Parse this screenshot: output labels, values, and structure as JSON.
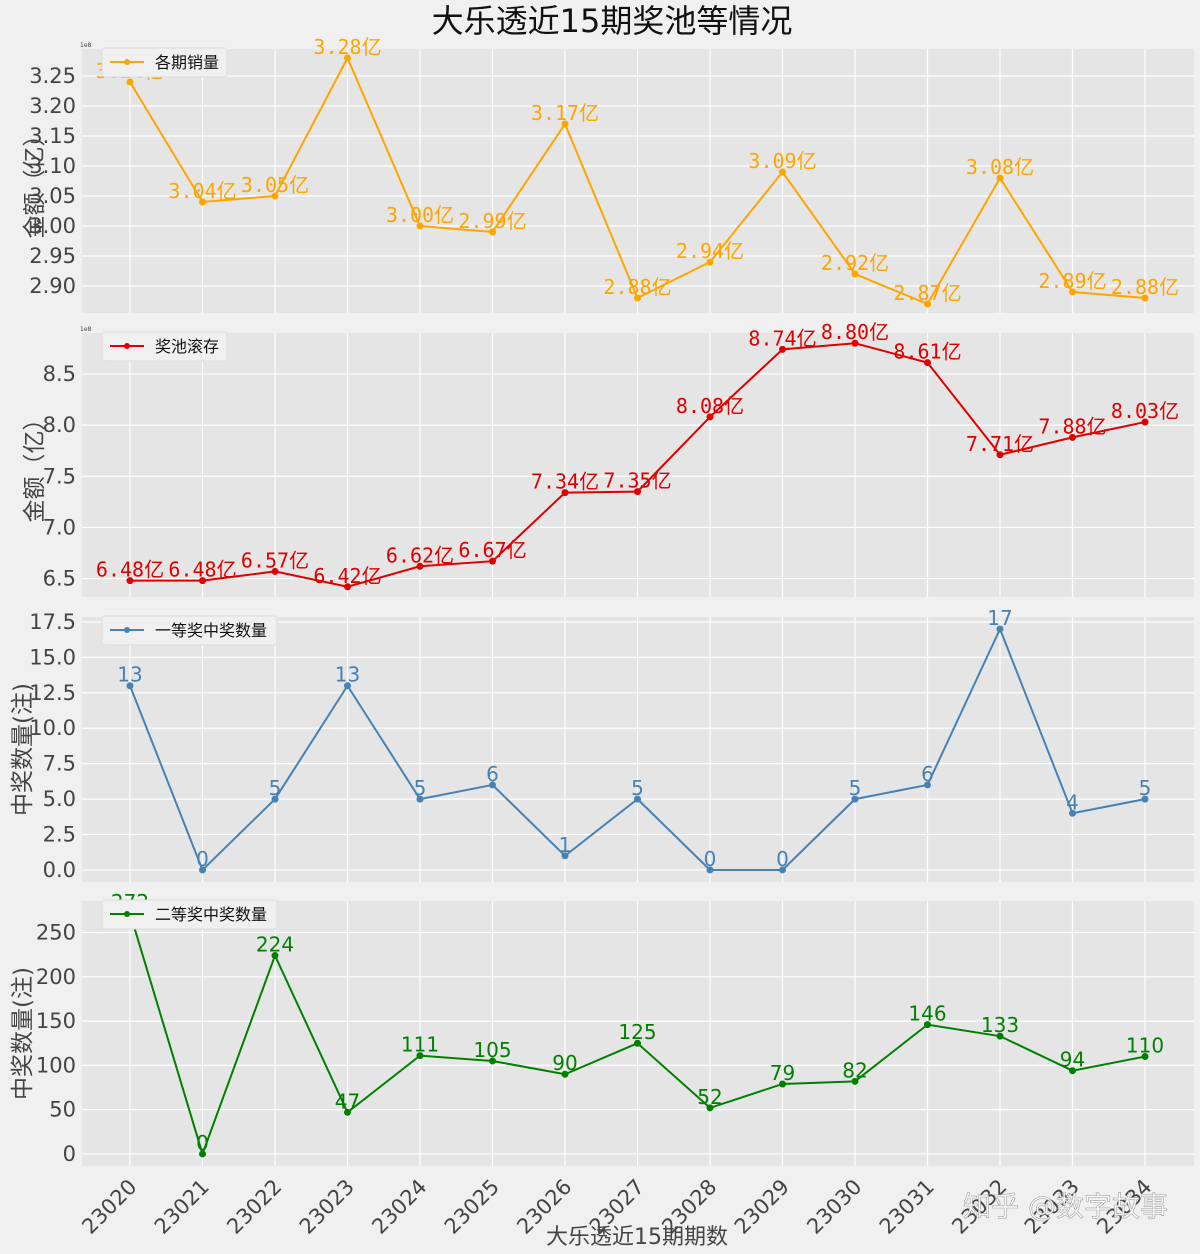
{
  "title": "大乐透近15期奖池等情况",
  "xlabel": "大乐透近15期期数",
  "watermark": "知乎 @数字故事",
  "periods": [
    "23020",
    "23021",
    "23022",
    "23023",
    "23024",
    "23025",
    "23026",
    "23027",
    "23028",
    "23029",
    "23030",
    "23031",
    "23032",
    "23033",
    "23034"
  ],
  "chart_data": [
    {
      "type": "line",
      "series": [
        {
          "name": "各期销量",
          "values": [
            3.24,
            3.04,
            3.05,
            3.28,
            3.0,
            2.99,
            3.17,
            2.88,
            2.94,
            3.09,
            2.92,
            2.87,
            3.08,
            2.89,
            2.88
          ]
        }
      ],
      "data_labels": [
        "3.24亿",
        "3.04亿",
        "3.05亿",
        "3.28亿",
        "3.00亿",
        "2.99亿",
        "3.17亿",
        "2.88亿",
        "2.94亿",
        "3.09亿",
        "2.92亿",
        "2.87亿",
        "3.08亿",
        "2.89亿",
        "2.88亿"
      ],
      "ylabel": "金额（亿）",
      "exponent": "1e8",
      "ylim": [
        2.855,
        3.295
      ],
      "yticks": [
        2.9,
        2.95,
        3.0,
        3.05,
        3.1,
        3.15,
        3.2,
        3.25
      ],
      "ytick_labels": [
        "2.90",
        "2.95",
        "3.00",
        "3.05",
        "3.10",
        "3.15",
        "3.20",
        "3.25"
      ],
      "color": "#ffa500",
      "legend": "top-left",
      "grid": true
    },
    {
      "type": "line",
      "series": [
        {
          "name": "奖池滚存",
          "values": [
            6.48,
            6.48,
            6.57,
            6.42,
            6.62,
            6.67,
            7.34,
            7.35,
            8.08,
            8.74,
            8.8,
            8.61,
            7.71,
            7.88,
            8.03
          ]
        }
      ],
      "data_labels": [
        "6.48亿",
        "6.48亿",
        "6.57亿",
        "6.42亿",
        "6.62亿",
        "6.67亿",
        "7.34亿",
        "7.35亿",
        "8.08亿",
        "8.74亿",
        "8.80亿",
        "8.61亿",
        "7.71亿",
        "7.88亿",
        "8.03亿"
      ],
      "ylabel": "金额（亿）",
      "exponent": "1e8",
      "ylim": [
        6.32,
        8.9
      ],
      "yticks": [
        6.5,
        7.0,
        7.5,
        8.0,
        8.5
      ],
      "ytick_labels": [
        "6.5",
        "7.0",
        "7.5",
        "8.0",
        "8.5"
      ],
      "color": "#e00000",
      "legend": "top-left",
      "grid": true
    },
    {
      "type": "line",
      "series": [
        {
          "name": "一等奖中奖数量",
          "values": [
            13,
            0,
            5,
            13,
            5,
            6,
            1,
            5,
            0,
            0,
            5,
            6,
            17,
            4,
            5
          ]
        }
      ],
      "data_labels": [
        "13",
        "0",
        "5",
        "13",
        "5",
        "6",
        "1",
        "5",
        "0",
        "0",
        "5",
        "6",
        "17",
        "4",
        "5"
      ],
      "ylabel": "中奖数量(注)",
      "ylim": [
        -0.85,
        17.85
      ],
      "yticks": [
        0,
        2.5,
        5.0,
        7.5,
        10.0,
        12.5,
        15.0,
        17.5
      ],
      "ytick_labels": [
        "0.0",
        "2.5",
        "5.0",
        "7.5",
        "10.0",
        "12.5",
        "15.0",
        "17.5"
      ],
      "color": "#4682b4",
      "legend": "top-left",
      "grid": true
    },
    {
      "type": "line",
      "series": [
        {
          "name": "二等奖中奖数量",
          "values": [
            272,
            0,
            224,
            47,
            111,
            105,
            90,
            125,
            52,
            79,
            82,
            146,
            133,
            94,
            110
          ]
        }
      ],
      "data_labels": [
        "272",
        "0",
        "224",
        "47",
        "111",
        "105",
        "90",
        "125",
        "52",
        "79",
        "82",
        "146",
        "133",
        "94",
        "110"
      ],
      "ylabel": "中奖数量(注)",
      "ylim": [
        -13.6,
        285.6
      ],
      "yticks": [
        0,
        50,
        100,
        150,
        200,
        250
      ],
      "ytick_labels": [
        "0",
        "50",
        "100",
        "150",
        "200",
        "250"
      ],
      "color": "#008000",
      "legend": "top-left",
      "grid": true
    }
  ]
}
